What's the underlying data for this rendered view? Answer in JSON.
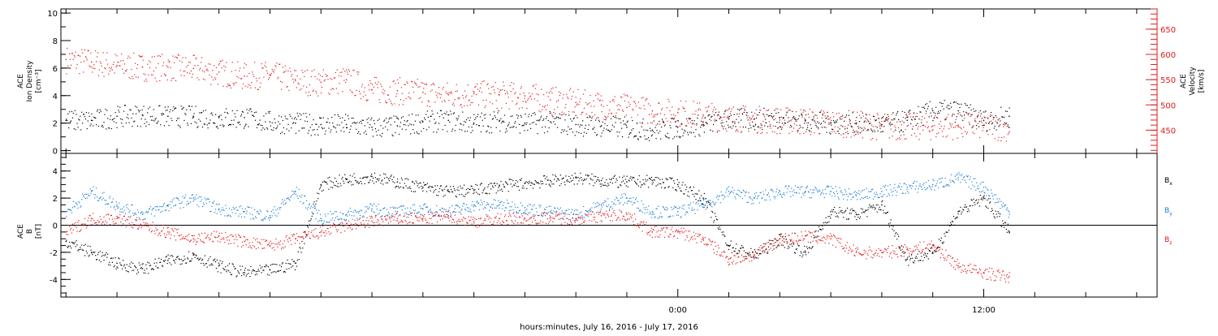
{
  "chart_data": [
    {
      "type": "scatter",
      "panel": "top",
      "left_axis": {
        "label_lines": [
          "ACE",
          "Ion Density",
          "[cm⁻³]"
        ],
        "ticks": [
          0,
          2,
          4,
          6,
          8,
          10
        ],
        "tick_labels": [
          "0",
          "2",
          "4",
          "6",
          "8",
          "10"
        ],
        "range": [
          -0.2,
          10.3
        ],
        "color": "#000000"
      },
      "right_axis": {
        "label_lines": [
          "ACE",
          "Velocity",
          "[km/s]"
        ],
        "ticks": [
          450,
          500,
          550,
          600,
          650
        ],
        "tick_labels": [
          "450",
          "500",
          "550",
          "600",
          "650"
        ],
        "range": [
          404,
          690
        ],
        "color": "#e31a1c"
      },
      "series": [
        {
          "axis": "left",
          "color": "#000000",
          "points": [
            [
              -24,
              2.2
            ],
            [
              -23,
              2.2
            ],
            [
              -22,
              2.5
            ],
            [
              -21,
              2.6
            ],
            [
              -20,
              2.5
            ],
            [
              -19,
              2.5
            ],
            [
              -18,
              2.4
            ],
            [
              -17,
              2.4
            ],
            [
              -16,
              2.1
            ],
            [
              -15,
              2.0
            ],
            [
              -14,
              1.9
            ],
            [
              -13,
              1.9
            ],
            [
              -12,
              1.7
            ],
            [
              -11,
              1.8
            ],
            [
              -10,
              2.1
            ],
            [
              -9,
              2.2
            ],
            [
              -8,
              2.0
            ],
            [
              -7,
              2.2
            ],
            [
              -6,
              2.0
            ],
            [
              -5,
              2.1
            ],
            [
              -4,
              1.9
            ],
            [
              -3,
              1.8
            ],
            [
              -2,
              1.7
            ],
            [
              -1,
              1.5
            ],
            [
              0,
              1.7
            ],
            [
              1,
              1.9
            ],
            [
              2,
              2.3
            ],
            [
              3,
              2.3
            ],
            [
              4,
              2.4
            ],
            [
              5,
              2.2
            ],
            [
              6,
              2.0
            ],
            [
              7,
              2.0
            ],
            [
              8,
              1.9
            ],
            [
              9,
              2.2
            ],
            [
              10,
              2.9
            ],
            [
              11,
              2.9
            ],
            [
              12,
              2.2
            ],
            [
              13,
              2.5
            ]
          ]
        },
        {
          "axis": "right",
          "color": "#e31a1c",
          "points": [
            [
              -24,
              590
            ],
            [
              -23,
              585
            ],
            [
              -22,
              578
            ],
            [
              -21,
              575
            ],
            [
              -20,
              575
            ],
            [
              -19,
              572
            ],
            [
              -18,
              565
            ],
            [
              -17,
              557
            ],
            [
              -16,
              560
            ],
            [
              -15,
              548
            ],
            [
              -14,
              545
            ],
            [
              -13,
              550
            ],
            [
              -12,
              530
            ],
            [
              -11,
              528
            ],
            [
              -10,
              525
            ],
            [
              -9,
              520
            ],
            [
              -8,
              522
            ],
            [
              -7,
              520
            ],
            [
              -6,
              518
            ],
            [
              -5,
              510
            ],
            [
              -4,
              505
            ],
            [
              -3,
              500
            ],
            [
              -2,
              495
            ],
            [
              -1,
              488
            ],
            [
              0,
              485
            ],
            [
              1,
              480
            ],
            [
              2,
              475
            ],
            [
              3,
              472
            ],
            [
              4,
              470
            ],
            [
              5,
              468
            ],
            [
              6,
              465
            ],
            [
              7,
              462
            ],
            [
              8,
              458
            ],
            [
              9,
              458
            ],
            [
              10,
              458
            ],
            [
              11,
              460
            ],
            [
              12,
              460
            ],
            [
              13,
              455
            ]
          ]
        }
      ]
    },
    {
      "type": "scatter",
      "panel": "bottom",
      "left_axis": {
        "label_lines": [
          "ACE",
          "B",
          "[nT]"
        ],
        "ticks": [
          -4,
          -2,
          0,
          2,
          4
        ],
        "tick_labels": [
          "-4",
          "-2",
          "0",
          "2",
          "4"
        ],
        "range": [
          -5.3,
          5.3
        ],
        "color": "#000000"
      },
      "zero_line": true,
      "legend": {
        "position": "right",
        "entries": [
          {
            "label": "B",
            "sub": "x",
            "color": "#000000"
          },
          {
            "label": "B",
            "sub": "y",
            "color": "#1f7ed6"
          },
          {
            "label": "B",
            "sub": "z",
            "color": "#e31a1c"
          }
        ]
      },
      "series": [
        {
          "name": "Bx",
          "color": "#000000",
          "points": [
            [
              -24,
              -1.2
            ],
            [
              -23,
              -2.0
            ],
            [
              -22,
              -2.8
            ],
            [
              -21,
              -3.2
            ],
            [
              -20,
              -2.6
            ],
            [
              -19,
              -2.2
            ],
            [
              -18,
              -3.0
            ],
            [
              -17,
              -3.5
            ],
            [
              -16,
              -3.3
            ],
            [
              -15,
              -2.8
            ],
            [
              -14,
              3.0
            ],
            [
              -13,
              3.4
            ],
            [
              -12,
              3.6
            ],
            [
              -11,
              3.2
            ],
            [
              -10,
              2.8
            ],
            [
              -9,
              2.5
            ],
            [
              -8,
              2.6
            ],
            [
              -7,
              2.9
            ],
            [
              -6,
              3.1
            ],
            [
              -5,
              3.3
            ],
            [
              -4,
              3.5
            ],
            [
              -3,
              3.3
            ],
            [
              -2,
              3.2
            ],
            [
              -1,
              3.3
            ],
            [
              0,
              3.0
            ],
            [
              1,
              2.0
            ],
            [
              2,
              -1.5
            ],
            [
              3,
              -2.2
            ],
            [
              4,
              -1.0
            ],
            [
              5,
              -2.0
            ],
            [
              6,
              1.0
            ],
            [
              7,
              0.8
            ],
            [
              8,
              1.5
            ],
            [
              9,
              -2.5
            ],
            [
              10,
              -2.0
            ],
            [
              11,
              1.0
            ],
            [
              12,
              2.0
            ],
            [
              13,
              -0.5
            ]
          ]
        },
        {
          "name": "By",
          "color": "#1f7ed6",
          "points": [
            [
              -24,
              1.0
            ],
            [
              -23,
              2.5
            ],
            [
              -22,
              1.5
            ],
            [
              -21,
              0.8
            ],
            [
              -20,
              1.5
            ],
            [
              -19,
              2.0
            ],
            [
              -18,
              1.2
            ],
            [
              -17,
              1.0
            ],
            [
              -16,
              0.7
            ],
            [
              -15,
              2.5
            ],
            [
              -14,
              0.5
            ],
            [
              -13,
              0.8
            ],
            [
              -12,
              1.2
            ],
            [
              -11,
              1.0
            ],
            [
              -10,
              1.2
            ],
            [
              -9,
              1.0
            ],
            [
              -8,
              1.5
            ],
            [
              -7,
              1.5
            ],
            [
              -6,
              1.3
            ],
            [
              -5,
              1.0
            ],
            [
              -4,
              0.8
            ],
            [
              -3,
              1.5
            ],
            [
              -2,
              2.0
            ],
            [
              -1,
              1.0
            ],
            [
              0,
              1.0
            ],
            [
              1,
              1.5
            ],
            [
              2,
              2.5
            ],
            [
              3,
              2.0
            ],
            [
              4,
              2.5
            ],
            [
              5,
              2.5
            ],
            [
              6,
              2.5
            ],
            [
              7,
              2.2
            ],
            [
              8,
              2.5
            ],
            [
              9,
              2.8
            ],
            [
              10,
              3.0
            ],
            [
              11,
              3.5
            ],
            [
              12,
              2.8
            ],
            [
              13,
              1.0
            ]
          ]
        },
        {
          "name": "Bz",
          "color": "#e31a1c",
          "points": [
            [
              -24,
              -0.5
            ],
            [
              -23,
              0.5
            ],
            [
              -22,
              0.5
            ],
            [
              -21,
              0.0
            ],
            [
              -20,
              -0.5
            ],
            [
              -19,
              -1.0
            ],
            [
              -18,
              -0.8
            ],
            [
              -17,
              -1.2
            ],
            [
              -16,
              -1.5
            ],
            [
              -15,
              -1.0
            ],
            [
              -14,
              -0.5
            ],
            [
              -13,
              0.0
            ],
            [
              -12,
              0.3
            ],
            [
              -11,
              0.5
            ],
            [
              -10,
              0.5
            ],
            [
              -9,
              0.7
            ],
            [
              -8,
              0.3
            ],
            [
              -7,
              0.5
            ],
            [
              -6,
              0.5
            ],
            [
              -5,
              0.6
            ],
            [
              -4,
              0.5
            ],
            [
              -3,
              0.7
            ],
            [
              -2,
              0.8
            ],
            [
              -1,
              -0.5
            ],
            [
              0,
              -0.5
            ],
            [
              1,
              -1.0
            ],
            [
              2,
              -2.5
            ],
            [
              3,
              -2.2
            ],
            [
              4,
              -1.0
            ],
            [
              5,
              -0.8
            ],
            [
              6,
              -1.0
            ],
            [
              7,
              -2.0
            ],
            [
              8,
              -2.0
            ],
            [
              9,
              -1.8
            ],
            [
              10,
              -1.5
            ],
            [
              11,
              -3.0
            ],
            [
              12,
              -3.5
            ],
            [
              13,
              -3.8
            ]
          ]
        }
      ]
    }
  ],
  "x_axis": {
    "title": "hours:minutes, July 16, 2016 - July 17, 2016",
    "range_hours": [
      -24.2,
      18.8
    ],
    "major_ticks": [
      0,
      12
    ],
    "tick_labels": [
      "0:00",
      "12:00"
    ],
    "minor_step_hours": 2
  }
}
